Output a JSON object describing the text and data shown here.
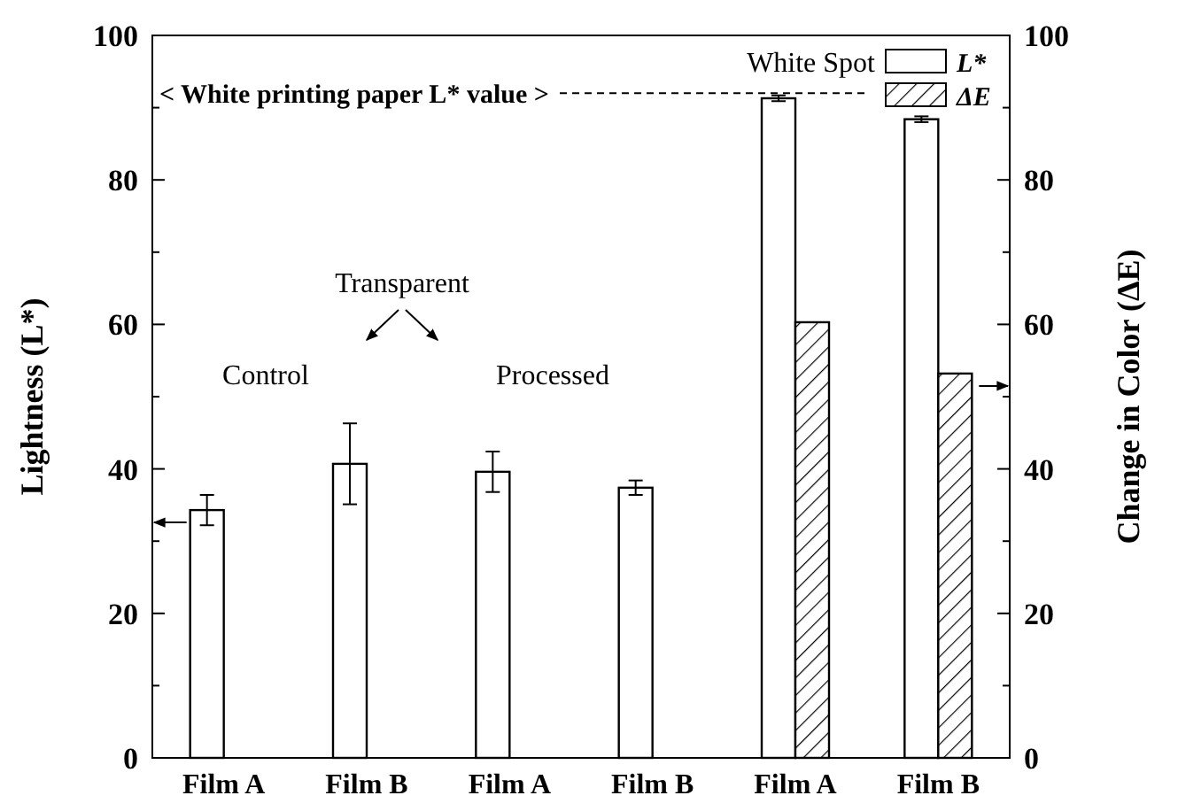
{
  "chart_data": {
    "type": "bar",
    "categories": [
      "Film A",
      "Film B",
      "Film A",
      "Film B",
      "Film A",
      "Film B"
    ],
    "ylabel": "Lightness (L*)",
    "y2label": "Change in Color (ΔE)",
    "legend_title": "White Spot",
    "legend": "top right",
    "grid": false,
    "ylim": [
      0,
      100
    ],
    "yticks": [
      0,
      {
        "value": 10,
        "label": null
      },
      20,
      {
        "value": 30,
        "label": null
      },
      40,
      {
        "value": 50,
        "label": null
      },
      60,
      {
        "value": 70,
        "label": null
      },
      80,
      {
        "value": 90,
        "label": null
      },
      100
    ],
    "y2lim": [
      0,
      100
    ],
    "y2ticks": [
      0,
      {
        "value": 10,
        "label": null
      },
      20,
      {
        "value": 30,
        "label": null
      },
      40,
      {
        "value": 50,
        "label": null
      },
      60,
      {
        "value": 70,
        "label": null
      },
      80,
      {
        "value": 90,
        "label": null
      },
      100
    ],
    "series": [
      {
        "name": "L*",
        "color": "#ffffff",
        "values": [
          34.3,
          40.7,
          39.6,
          37.4,
          91.3,
          88.4
        ],
        "errors": [
          2.1,
          5.6,
          2.8,
          1.0,
          0.4,
          0.4
        ]
      },
      {
        "name": "ΔE",
        "color": "#000000",
        "axis": "y2",
        "values": [
          null,
          null,
          null,
          null,
          60.3,
          53.2
        ]
      }
    ],
    "ref_lines": [
      {
        "axis": "y",
        "value": 92,
        "label": "< White printing paper L* value >",
        "line_style": "dashed"
      }
    ],
    "annotations": [
      "Transparent",
      "Control",
      "Processed"
    ]
  }
}
